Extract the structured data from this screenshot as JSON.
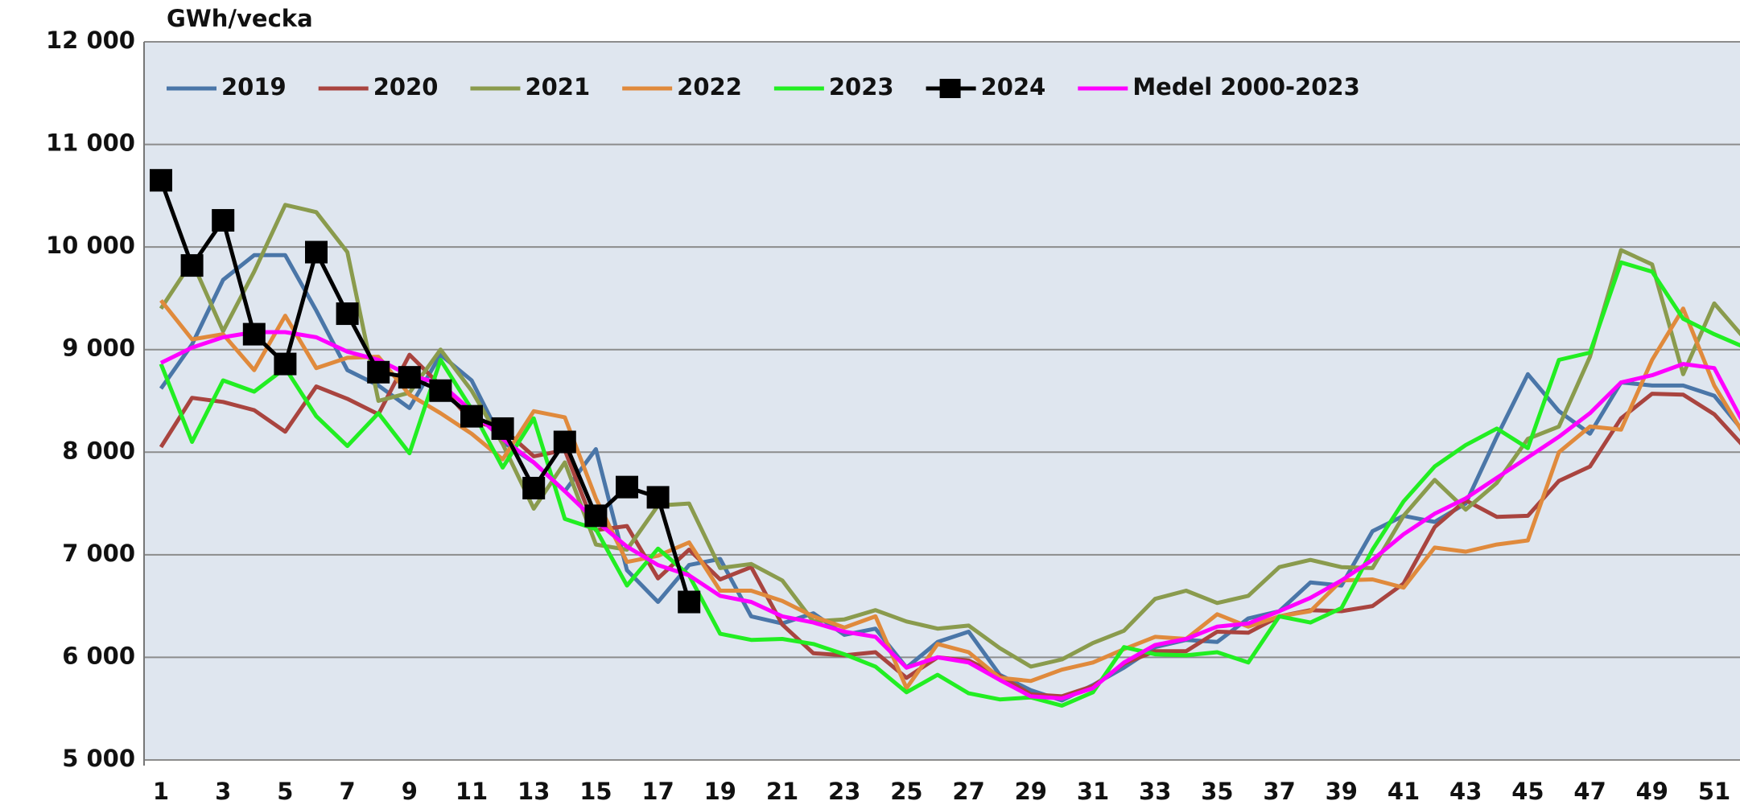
{
  "chart_data": {
    "type": "line",
    "y_label": "GWh/vecka",
    "categories": [
      1,
      null,
      3,
      null,
      5,
      null,
      7,
      null,
      9,
      null,
      11,
      null,
      13,
      null,
      15,
      null,
      17,
      null,
      19,
      null,
      21,
      null,
      23,
      null,
      25,
      null,
      27,
      null,
      29,
      null,
      31,
      null,
      33,
      null,
      35,
      null,
      37,
      null,
      39,
      null,
      41,
      null,
      43,
      null,
      45,
      null,
      47,
      null,
      49,
      null,
      51,
      null
    ],
    "ylim": [
      5000,
      12000
    ],
    "yticks": [
      {
        "value": 5000,
        "label": "5 000"
      },
      {
        "value": 6000,
        "label": "6 000"
      },
      {
        "value": 7000,
        "label": "7 000"
      },
      {
        "value": 8000,
        "label": "8 000"
      },
      {
        "value": 9000,
        "label": "9 000"
      },
      {
        "value": 10000,
        "label": "10 000"
      },
      {
        "value": 11000,
        "label": "11 000"
      },
      {
        "value": 12000,
        "label": "12 000"
      }
    ],
    "grid": true,
    "legend": "top-left",
    "series": [
      {
        "name": "2019",
        "color": "#4a76a8",
        "values": [
          8620,
          9050,
          9680,
          9920,
          9920,
          9380,
          8800,
          8650,
          8430,
          8950,
          8700,
          8100,
          7900,
          7620,
          8030,
          6850,
          6540,
          6900,
          6960,
          6400,
          6330,
          6430,
          6220,
          6280,
          5900,
          6150,
          6250,
          5830,
          5680,
          5580,
          5730,
          5900,
          6100,
          6170,
          6150,
          6380,
          6450,
          6730,
          6700,
          7230,
          7380,
          7320,
          7500,
          8150,
          8760,
          8400,
          8180,
          8680,
          8650,
          8650,
          8550,
          8180
        ]
      },
      {
        "name": "2020",
        "color": "#a9443f",
        "values": [
          8050,
          8530,
          8490,
          8410,
          8200,
          8640,
          8520,
          8370,
          8950,
          8650,
          8300,
          8230,
          7960,
          8020,
          7240,
          7280,
          6770,
          7050,
          6760,
          6880,
          6320,
          6040,
          6020,
          6050,
          5800,
          6000,
          5970,
          5820,
          5640,
          5620,
          5720,
          5940,
          6060,
          6060,
          6250,
          6240,
          6400,
          6460,
          6450,
          6500,
          6720,
          7270,
          7530,
          7370,
          7380,
          7720,
          7860,
          8330,
          8570,
          8560,
          8370,
          8040
        ]
      },
      {
        "name": "2021",
        "color": "#8a9b4d",
        "values": [
          9400,
          9860,
          9180,
          9760,
          10410,
          10340,
          9950,
          8500,
          8580,
          9000,
          8600,
          8080,
          7450,
          7900,
          7100,
          7050,
          7480,
          7500,
          6870,
          6910,
          6750,
          6350,
          6370,
          6460,
          6350,
          6280,
          6310,
          6090,
          5910,
          5980,
          6140,
          6260,
          6570,
          6650,
          6530,
          6600,
          6880,
          6950,
          6880,
          6870,
          7380,
          7730,
          7440,
          7700,
          8130,
          8250,
          8930,
          9970,
          9830,
          8760,
          9450,
          9100
        ]
      },
      {
        "name": "2022",
        "color": "#e08a3c",
        "values": [
          9480,
          9100,
          9150,
          8800,
          9330,
          8820,
          8920,
          8930,
          8560,
          8380,
          8180,
          7930,
          8400,
          8340,
          7550,
          6930,
          6990,
          7120,
          6650,
          6650,
          6550,
          6400,
          6290,
          6400,
          5700,
          6130,
          6050,
          5800,
          5770,
          5880,
          5950,
          6080,
          6200,
          6180,
          6420,
          6300,
          6400,
          6450,
          6750,
          6760,
          6680,
          7070,
          7030,
          7100,
          7140,
          8000,
          8250,
          8220,
          8900,
          9400,
          8650,
          8150
        ]
      },
      {
        "name": "2023",
        "color": "#22ee22",
        "values": [
          8860,
          8100,
          8700,
          8590,
          8820,
          8350,
          8060,
          8380,
          7990,
          8900,
          8420,
          7850,
          8330,
          7350,
          7250,
          6700,
          7060,
          6800,
          6230,
          6170,
          6180,
          6130,
          6030,
          5910,
          5660,
          5830,
          5650,
          5590,
          5610,
          5530,
          5660,
          6100,
          6030,
          6020,
          6050,
          5950,
          6400,
          6340,
          6480,
          7050,
          7520,
          7860,
          8070,
          8230,
          8040,
          8900,
          8970,
          9850,
          9760,
          9300,
          9150,
          9020
        ]
      },
      {
        "name": "2024",
        "color": "#000000",
        "marker": "square",
        "values": [
          10650,
          9820,
          10260,
          9150,
          8860,
          9950,
          9350,
          8780,
          8730,
          8600,
          8350,
          8230,
          7650,
          8100,
          7380,
          7660,
          7560,
          6540,
          null,
          null,
          null,
          null,
          null,
          null,
          null,
          null,
          null,
          null,
          null,
          null,
          null,
          null,
          null,
          null,
          null,
          null,
          null,
          null,
          null,
          null,
          null,
          null,
          null,
          null,
          null,
          null,
          null,
          null,
          null,
          null,
          null,
          null
        ]
      },
      {
        "name": "Medel 2000-2023",
        "color": "#ff00ff",
        "values": [
          8870,
          9020,
          9120,
          9170,
          9170,
          9120,
          8980,
          8900,
          8750,
          8670,
          8400,
          8130,
          7900,
          7620,
          7330,
          7080,
          6900,
          6800,
          6600,
          6540,
          6400,
          6340,
          6250,
          6200,
          5900,
          6000,
          5950,
          5780,
          5620,
          5600,
          5700,
          5950,
          6120,
          6180,
          6300,
          6330,
          6450,
          6580,
          6750,
          6950,
          7200,
          7400,
          7550,
          7750,
          7950,
          8150,
          8380,
          8680,
          8750,
          8860,
          8820,
          8250
        ]
      }
    ]
  }
}
